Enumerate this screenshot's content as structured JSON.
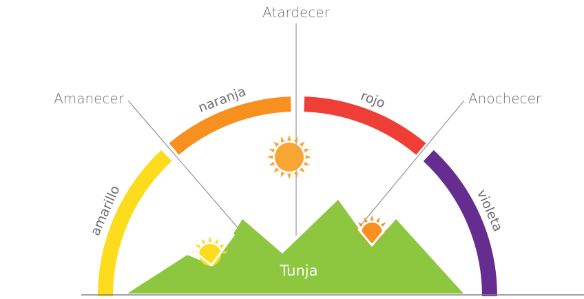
{
  "labels": {
    "top": "Atardecer",
    "left": "Amanecer",
    "right": "Anochecer"
  },
  "arcs": [
    {
      "name": "amarillo",
      "color": "#fcdc1c"
    },
    {
      "name": "naranja",
      "color": "#f7901e"
    },
    {
      "name": "rojo",
      "color": "#ee3e36"
    },
    {
      "name": "violeta",
      "color": "#662d91"
    }
  ],
  "place": "Tunja"
}
